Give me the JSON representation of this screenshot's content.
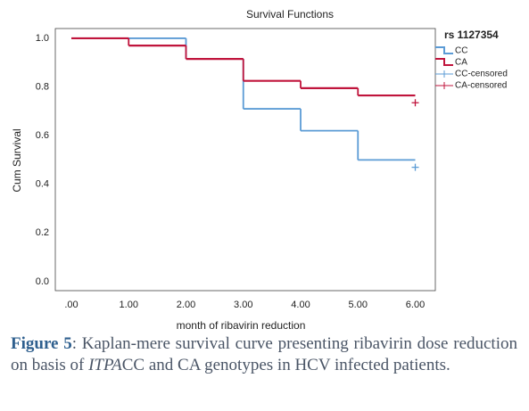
{
  "chart_data": {
    "type": "step",
    "title": "Survival Functions",
    "x_label": "month of ribavirin reduction",
    "y_label": "Cum Survival",
    "legend_title": "rs 1127354",
    "legend_position": "right",
    "xlim": [
      -0.28,
      6.35
    ],
    "xticks": [
      {
        "value": 0,
        "label": ".00"
      },
      {
        "value": 1,
        "label": "1.00"
      },
      {
        "value": 2,
        "label": "2.00"
      },
      {
        "value": 3,
        "label": "3.00"
      },
      {
        "value": 4,
        "label": "4.00"
      },
      {
        "value": 5,
        "label": "5.00"
      },
      {
        "value": 6,
        "label": "6.00"
      }
    ],
    "ylim": [
      -0.037,
      1.04
    ],
    "yticks": [
      {
        "value": 0,
        "label": "0.0"
      },
      0.2,
      0.4,
      0.6,
      0.8,
      {
        "value": 1,
        "label": "1.0"
      }
    ],
    "grid": false,
    "series": [
      {
        "name": "CC",
        "style": "step",
        "color": "#5b9bd5",
        "x": [
          0,
          2,
          3,
          4,
          5
        ],
        "values": [
          1.0,
          0.915,
          0.71,
          0.62,
          0.5
        ]
      },
      {
        "name": "CA",
        "style": "step",
        "color": "#c0143c",
        "x": [
          0,
          1,
          2,
          3,
          4,
          5
        ],
        "values": [
          1.0,
          0.97,
          0.915,
          0.825,
          0.795,
          0.765
        ]
      },
      {
        "name": "CC-censored",
        "style": "censor",
        "color": "#5b9bd5",
        "x": [
          6
        ],
        "values": [
          0.47
        ]
      },
      {
        "name": "CA-censored",
        "style": "censor",
        "color": "#c0143c",
        "x": [
          6
        ],
        "values": [
          0.735
        ]
      }
    ]
  },
  "caption": {
    "label": "Figure 5",
    "text": ": Kaplan-mere survival curve presenting ribavirin dose reduction on basis of ",
    "italic": "ITPA",
    "text_end": "CC and CA genotypes in HCV infected patients."
  }
}
